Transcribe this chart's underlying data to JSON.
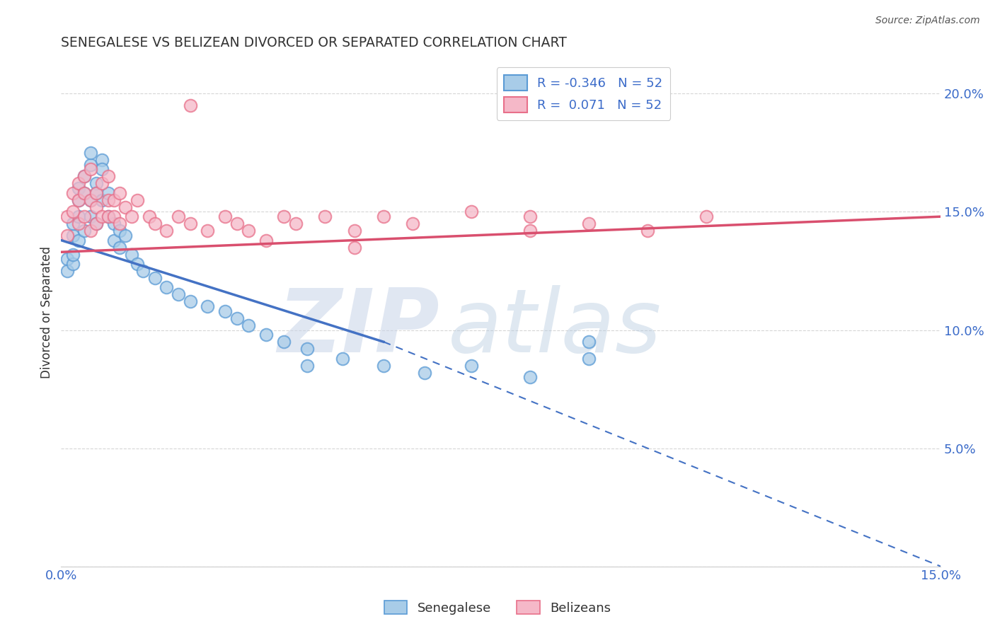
{
  "title": "SENEGALESE VS BELIZEAN DIVORCED OR SEPARATED CORRELATION CHART",
  "source": "Source: ZipAtlas.com",
  "ylabel": "Divorced or Separated",
  "xlim": [
    0.0,
    0.15
  ],
  "ylim": [
    0.0,
    0.215
  ],
  "xticks": [
    0.0,
    0.03,
    0.06,
    0.09,
    0.12,
    0.15
  ],
  "xtick_labels": [
    "0.0%",
    "",
    "",
    "",
    "",
    "15.0%"
  ],
  "yticks": [
    0.0,
    0.05,
    0.1,
    0.15,
    0.2
  ],
  "ytick_labels": [
    "",
    "5.0%",
    "10.0%",
    "15.0%",
    "20.0%"
  ],
  "blue_R": -0.346,
  "pink_R": 0.071,
  "N": 52,
  "blue_color": "#a8cce8",
  "pink_color": "#f5b8c8",
  "blue_edge_color": "#5b9bd5",
  "pink_edge_color": "#e8708a",
  "blue_line_color": "#4472c4",
  "pink_line_color": "#d94f6e",
  "watermark_zip_color": "#c8d4e8",
  "watermark_atlas_color": "#b8cce0",
  "blue_scatter_x": [
    0.001,
    0.001,
    0.002,
    0.002,
    0.002,
    0.002,
    0.003,
    0.003,
    0.003,
    0.003,
    0.004,
    0.004,
    0.004,
    0.005,
    0.005,
    0.005,
    0.005,
    0.006,
    0.006,
    0.006,
    0.007,
    0.007,
    0.007,
    0.008,
    0.008,
    0.009,
    0.009,
    0.01,
    0.01,
    0.011,
    0.012,
    0.013,
    0.014,
    0.016,
    0.018,
    0.02,
    0.022,
    0.025,
    0.028,
    0.03,
    0.032,
    0.035,
    0.038,
    0.042,
    0.048,
    0.055,
    0.062,
    0.07,
    0.08,
    0.09,
    0.042,
    0.09
  ],
  "blue_scatter_y": [
    0.13,
    0.125,
    0.14,
    0.128,
    0.145,
    0.132,
    0.155,
    0.148,
    0.16,
    0.138,
    0.165,
    0.158,
    0.142,
    0.17,
    0.175,
    0.155,
    0.148,
    0.162,
    0.145,
    0.158,
    0.172,
    0.168,
    0.155,
    0.158,
    0.148,
    0.145,
    0.138,
    0.142,
    0.135,
    0.14,
    0.132,
    0.128,
    0.125,
    0.122,
    0.118,
    0.115,
    0.112,
    0.11,
    0.108,
    0.105,
    0.102,
    0.098,
    0.095,
    0.092,
    0.088,
    0.085,
    0.082,
    0.085,
    0.08,
    0.088,
    0.085,
    0.095
  ],
  "pink_scatter_x": [
    0.001,
    0.001,
    0.002,
    0.002,
    0.003,
    0.003,
    0.003,
    0.004,
    0.004,
    0.004,
    0.005,
    0.005,
    0.005,
    0.006,
    0.006,
    0.006,
    0.007,
    0.007,
    0.008,
    0.008,
    0.008,
    0.009,
    0.009,
    0.01,
    0.01,
    0.011,
    0.012,
    0.013,
    0.015,
    0.016,
    0.018,
    0.02,
    0.022,
    0.025,
    0.028,
    0.03,
    0.032,
    0.035,
    0.038,
    0.04,
    0.045,
    0.05,
    0.055,
    0.06,
    0.07,
    0.08,
    0.09,
    0.1,
    0.11,
    0.022,
    0.05,
    0.08
  ],
  "pink_scatter_y": [
    0.14,
    0.148,
    0.15,
    0.158,
    0.145,
    0.155,
    0.162,
    0.148,
    0.158,
    0.165,
    0.142,
    0.155,
    0.168,
    0.152,
    0.145,
    0.158,
    0.148,
    0.162,
    0.155,
    0.148,
    0.165,
    0.155,
    0.148,
    0.158,
    0.145,
    0.152,
    0.148,
    0.155,
    0.148,
    0.145,
    0.142,
    0.148,
    0.145,
    0.142,
    0.148,
    0.145,
    0.142,
    0.138,
    0.148,
    0.145,
    0.148,
    0.142,
    0.148,
    0.145,
    0.15,
    0.148,
    0.145,
    0.142,
    0.148,
    0.195,
    0.135,
    0.142
  ],
  "blue_line_x0": 0.0,
  "blue_line_y0": 0.138,
  "blue_line_x_solid_end": 0.055,
  "blue_line_y_solid_end": 0.095,
  "blue_line_x1": 0.15,
  "blue_line_y1": 0.0,
  "pink_line_x0": 0.0,
  "pink_line_y0": 0.133,
  "pink_line_x1": 0.15,
  "pink_line_y1": 0.148
}
